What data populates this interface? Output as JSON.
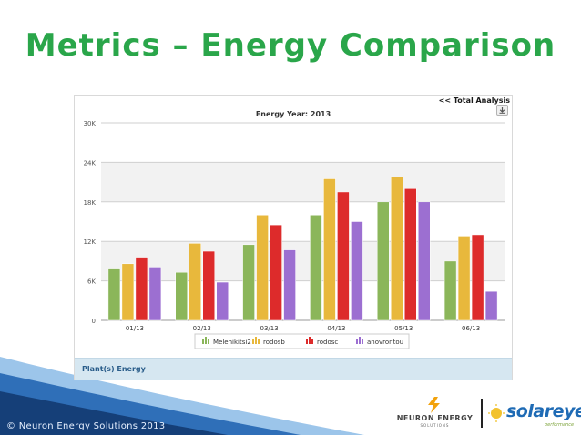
{
  "slide": {
    "title": "Metrics – Energy Comparison",
    "copyright": "© Neuron Energy Solutions 2013"
  },
  "panel": {
    "total_analysis_link": "<< Total Analysis",
    "footer_label": "Plant(s) Energy",
    "export_icon": "export-icon"
  },
  "logos": {
    "neuron_name": "NEURON ENERGY",
    "neuron_sub": "SOLUTIONS",
    "solareye_name": "solareye",
    "solareye_sub": "performance"
  },
  "colors": {
    "title_green": "#2aa64a",
    "footer_blue": "#d6e7f1",
    "deco_blue": "#1d4f8c"
  },
  "chart_data": {
    "type": "bar",
    "title": "Energy Year: 2013",
    "xlabel": "",
    "ylabel": "",
    "categories": [
      "01/13",
      "02/13",
      "03/13",
      "04/13",
      "05/13",
      "06/13"
    ],
    "yticks": [
      "0",
      "6K",
      "12K",
      "18K",
      "24K",
      "30K"
    ],
    "ylim": [
      0,
      30000
    ],
    "grid": true,
    "legend_position": "bottom",
    "series": [
      {
        "name": "Melenikitsi2",
        "color": "#8bb65a",
        "values": [
          7800,
          7300,
          11500,
          16000,
          18000,
          9000
        ]
      },
      {
        "name": "rodosb",
        "color": "#e8b83c",
        "values": [
          8600,
          11700,
          16000,
          21500,
          21800,
          12800
        ]
      },
      {
        "name": "rodosc",
        "color": "#dd2b2b",
        "values": [
          9600,
          10500,
          14500,
          19500,
          20000,
          13000
        ]
      },
      {
        "name": "anovrontou",
        "color": "#9c6fd1",
        "values": [
          8100,
          5800,
          10700,
          15000,
          18000,
          4400
        ]
      }
    ]
  }
}
